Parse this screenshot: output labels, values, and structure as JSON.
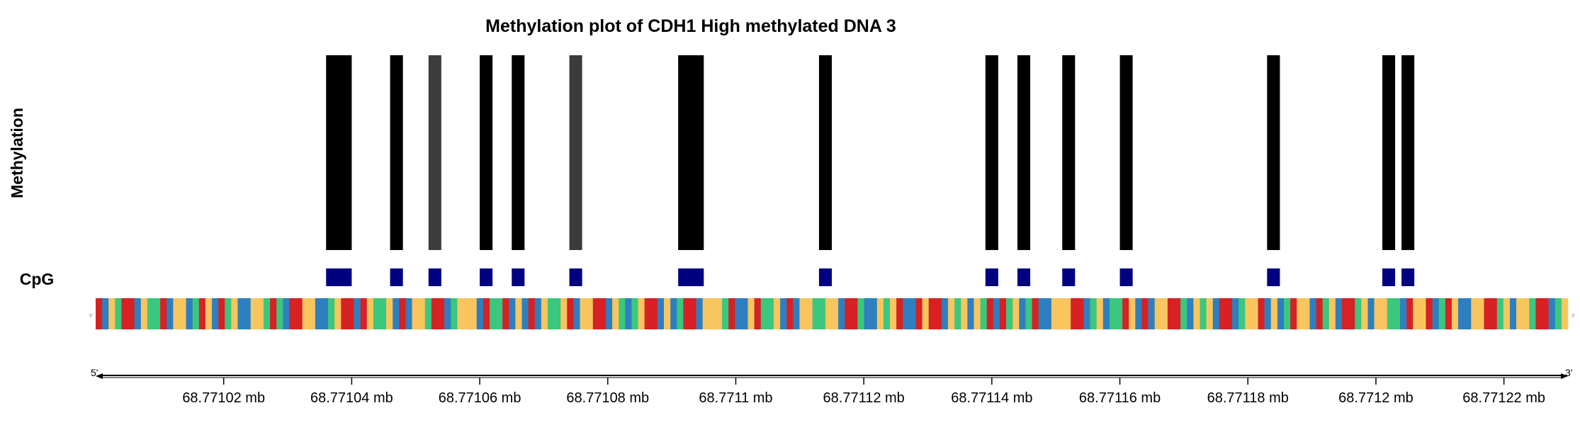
{
  "chart_data": {
    "type": "bar",
    "title": "Methylation plot of CDH1 High methylated DNA 3",
    "ylabel": "Methylation",
    "track_label": "CpG",
    "xlim": [
      68.771,
      68.77123
    ],
    "x_unit": "mb",
    "x_ticks": [
      {
        "value": 68.77102,
        "label": "68.77102 mb"
      },
      {
        "value": 68.77104,
        "label": "68.77104 mb"
      },
      {
        "value": 68.77106,
        "label": "68.77106 mb"
      },
      {
        "value": 68.77108,
        "label": "68.77108 mb"
      },
      {
        "value": 68.7711,
        "label": "68.7711 mb"
      },
      {
        "value": 68.77112,
        "label": "68.77112 mb"
      },
      {
        "value": 68.77114,
        "label": "68.77114 mb"
      },
      {
        "value": 68.77116,
        "label": "68.77116 mb"
      },
      {
        "value": 68.77118,
        "label": "68.77118 mb"
      },
      {
        "value": 68.7712,
        "label": "68.7712 mb"
      },
      {
        "value": 68.77122,
        "label": "68.77122 mb"
      }
    ],
    "methylation_sites": [
      {
        "start": 68.771036,
        "end": 68.77104,
        "shade": "#000000"
      },
      {
        "start": 68.771046,
        "end": 68.771048,
        "shade": "#000000"
      },
      {
        "start": 68.771052,
        "end": 68.771054,
        "shade": "#3c3c3c"
      },
      {
        "start": 68.77106,
        "end": 68.771062,
        "shade": "#000000"
      },
      {
        "start": 68.771065,
        "end": 68.771067,
        "shade": "#000000"
      },
      {
        "start": 68.771074,
        "end": 68.771076,
        "shade": "#3c3c3c"
      },
      {
        "start": 68.771091,
        "end": 68.771095,
        "shade": "#000000"
      },
      {
        "start": 68.771113,
        "end": 68.771115,
        "shade": "#000000"
      },
      {
        "start": 68.771139,
        "end": 68.771141,
        "shade": "#000000"
      },
      {
        "start": 68.771144,
        "end": 68.771146,
        "shade": "#000000"
      },
      {
        "start": 68.771151,
        "end": 68.771153,
        "shade": "#000000"
      },
      {
        "start": 68.77116,
        "end": 68.771162,
        "shade": "#000000"
      },
      {
        "start": 68.771183,
        "end": 68.771185,
        "shade": "#000000"
      },
      {
        "start": 68.771201,
        "end": 68.771203,
        "shade": "#000000"
      },
      {
        "start": 68.771204,
        "end": 68.771206,
        "shade": "#000000"
      }
    ],
    "sequence_start_label": "5'",
    "sequence_end_label": "3'",
    "sequence_track_start_label": "5'",
    "sequence_track_end_label": "3'",
    "sequence": "TACGTTACGGTACCAGTCATGCAACCGTGATTCCAAGCTTATCGGCATACCGTTAGCCCATGGTACATACGGCTACCTTACGAGCTTACAGTTACCCGTAACTGGCATACCGGCCATTGAACGCTAATCTTACGCACGTATGCAGTAACCCTTAGCAGGTCATACCTTGACGCATTAGCCTACAGTCCATGCATTGCACCGGATCCTAGTCAACCTTGCACCGTTAGC",
    "base_colors": {
      "A": "#2e7fbf",
      "C": "#f9c55e",
      "G": "#3bc77d",
      "T": "#d72124"
    },
    "cpg_color": "#000080"
  }
}
